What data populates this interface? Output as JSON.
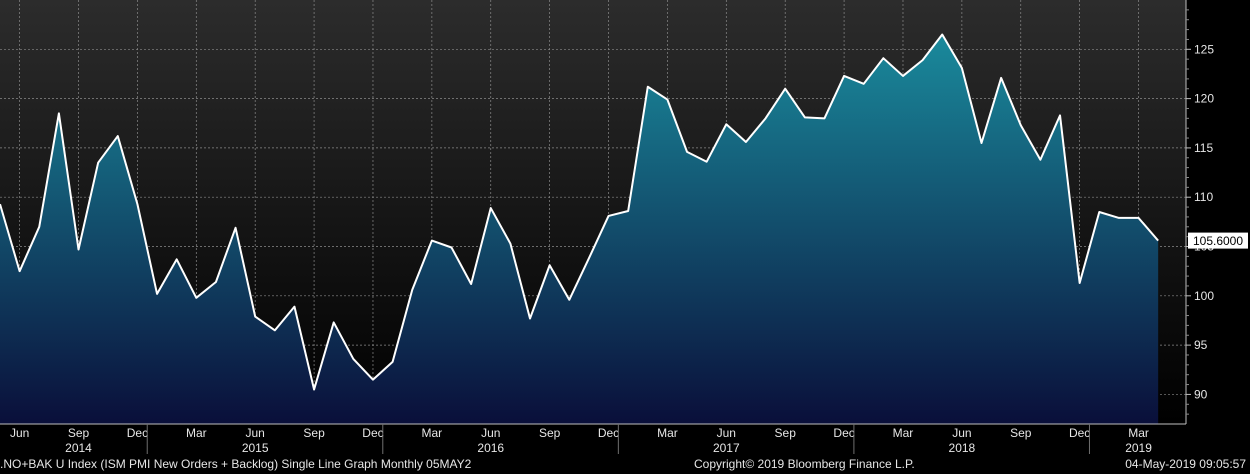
{
  "chart_data": {
    "type": "area",
    "series": [
      {
        "values": [
          109.3,
          102.5,
          107.0,
          118.5,
          104.7,
          113.5,
          116.2,
          109.3,
          100.2,
          103.7,
          99.8,
          101.4,
          106.9,
          97.9,
          96.5,
          98.9,
          90.5,
          97.3,
          93.6,
          91.5,
          93.3,
          100.6,
          105.6,
          104.9,
          101.2,
          108.9,
          105.3,
          97.7,
          103.1,
          99.6,
          103.8,
          108.1,
          108.6,
          121.2,
          119.9,
          114.6,
          113.6,
          117.4,
          115.6,
          118.0,
          121.0,
          118.1,
          118.0,
          122.3,
          121.5,
          124.1,
          122.3,
          123.9,
          126.5,
          123.1,
          115.5,
          122.1,
          117.3,
          113.8,
          118.3,
          101.3,
          108.5,
          107.9,
          107.9,
          105.6
        ]
      }
    ],
    "first_period": "2014-05",
    "ylim": [
      87,
      130
    ],
    "y_ticks": [
      90,
      95,
      100,
      105,
      110,
      115,
      120,
      125
    ],
    "x_tick_labels": [
      {
        "label": "Jun",
        "index": 1
      },
      {
        "label": "Sep",
        "index": 4
      },
      {
        "label": "Dec",
        "index": 7
      },
      {
        "label": "Mar",
        "index": 10
      },
      {
        "label": "Jun",
        "index": 13
      },
      {
        "label": "Sep",
        "index": 16
      },
      {
        "label": "Dec",
        "index": 19
      },
      {
        "label": "Mar",
        "index": 22
      },
      {
        "label": "Jun",
        "index": 25
      },
      {
        "label": "Sep",
        "index": 28
      },
      {
        "label": "Dec",
        "index": 31
      },
      {
        "label": "Mar",
        "index": 34
      },
      {
        "label": "Jun",
        "index": 37
      },
      {
        "label": "Sep",
        "index": 40
      },
      {
        "label": "Dec",
        "index": 43
      },
      {
        "label": "Mar",
        "index": 46
      },
      {
        "label": "Jun",
        "index": 49
      },
      {
        "label": "Sep",
        "index": 52
      },
      {
        "label": "Dec",
        "index": 55
      },
      {
        "label": "Mar",
        "index": 58
      }
    ],
    "year_labels": [
      {
        "label": "2014",
        "index": 4
      },
      {
        "label": "2015",
        "index": 13
      },
      {
        "label": "2016",
        "index": 25
      },
      {
        "label": "2017",
        "index": 37
      },
      {
        "label": "2018",
        "index": 49
      },
      {
        "label": "2019",
        "index": 58
      }
    ],
    "last_value_label": "105.6000",
    "grid": true,
    "colors": {
      "background_top": "#2c2c2c",
      "background_bottom": "#000000",
      "fill_top": "#1a8a9c",
      "fill_bottom": "#0a0f3a",
      "line": "#ffffff",
      "grid": "#8a8a8a",
      "text": "#e6e6e6"
    }
  },
  "footer": {
    "description": ".NO+BAK U Index (ISM PMI New Orders + Backlog) Single Line Graph  Monthly 05MAY2",
    "copyright": "Copyright© 2019 Bloomberg Finance L.P.",
    "timestamp": "04-May-2019 09:05:57"
  }
}
